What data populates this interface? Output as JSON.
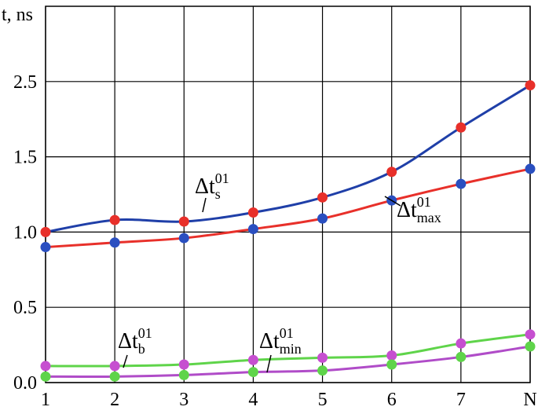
{
  "chart_data": {
    "type": "line",
    "y_axis_label": "t, ns",
    "categories": [
      "1",
      "2",
      "3",
      "4",
      "5",
      "6",
      "7",
      "N"
    ],
    "ylim": [
      0,
      3.5
    ],
    "yticks": [
      {
        "value": 0,
        "label": "0.0"
      },
      0.5,
      {
        "value": 1,
        "label": "1.0"
      },
      1.5,
      2.5
    ],
    "grid": true,
    "series": [
      {
        "label": {
          "base": "Δt",
          "sub": "s",
          "sup": "01"
        },
        "color": "#1f3fa8",
        "marker_color": "#e8302a",
        "values": [
          1.0,
          1.08,
          1.07,
          1.13,
          1.23,
          1.4,
          1.89,
          2.45
        ]
      },
      {
        "label": {
          "base": "Δt",
          "sub": "max",
          "sup": "01"
        },
        "color": "#e8302a",
        "marker_color": "#2a4fc0",
        "values": [
          0.9,
          0.93,
          0.96,
          1.02,
          1.09,
          1.21,
          1.32,
          1.42
        ]
      },
      {
        "label": {
          "base": "Δt",
          "sub": "b",
          "sup": "01"
        },
        "color": "#5fd44a",
        "marker_color": "#c64fd0",
        "values": [
          0.11,
          0.11,
          0.12,
          0.15,
          0.165,
          0.18,
          0.26,
          0.32
        ]
      },
      {
        "label": {
          "base": "Δt",
          "sub": "min",
          "sup": "01"
        },
        "color": "#b04cc8",
        "marker_color": "#5fd44a",
        "values": [
          0.04,
          0.04,
          0.05,
          0.07,
          0.08,
          0.12,
          0.17,
          0.24
        ]
      }
    ]
  }
}
